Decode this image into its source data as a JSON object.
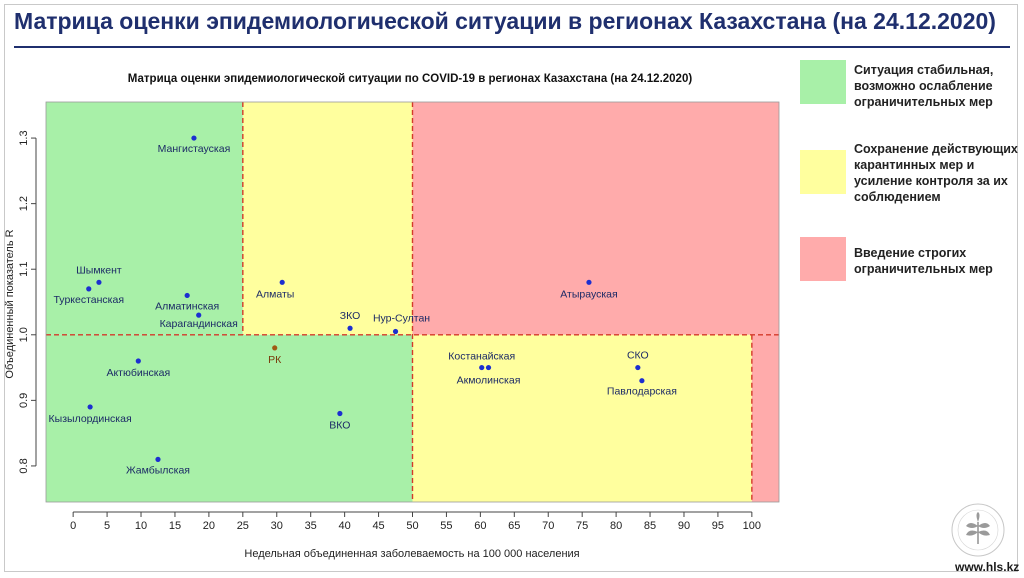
{
  "page": {
    "title": "Матрица оценки эпидемиологической ситуации в регионах Казахстана (на 24.12.2020)",
    "url": "www.hls.kz"
  },
  "colors": {
    "green": "#a8f0a8",
    "yellow": "#ffff9e",
    "red": "#ffabab",
    "threshold_line": "#d43a2a",
    "point": "#1c2fd0",
    "point_rk": "#a05a14",
    "title_color": "#1f2f6e"
  },
  "legend": [
    {
      "text": "Ситуация стабильная, возможно ослабление ограничительных мер",
      "color": "#a8f0a8"
    },
    {
      "text": "Сохранение действующих карантинных мер и усиление контроля за их соблюдением",
      "color": "#ffff9e"
    },
    {
      "text": "Введение строгих ограничительных мер",
      "color": "#ffabab"
    }
  ],
  "chart_data": {
    "type": "scatter",
    "title": "Матрица оценки эпидемиологической ситуации по COVID-19 в регионах Казахстана (на 24.12.2020)",
    "xlabel": "Недельная объединенная заболеваемость на 100 000 населения",
    "ylabel": "Объединенный показатель R",
    "xlim": [
      -4,
      104
    ],
    "ylim": [
      0.745,
      1.355
    ],
    "xticks": [
      0,
      5,
      10,
      15,
      20,
      25,
      30,
      35,
      40,
      45,
      50,
      55,
      60,
      65,
      70,
      75,
      80,
      85,
      90,
      95,
      100
    ],
    "yticks": [
      0.8,
      0.9,
      1.0,
      1.1,
      1.2,
      1.3
    ],
    "thresholds": {
      "x": [
        25,
        50,
        100
      ],
      "y": 1.0
    },
    "points": [
      {
        "label": "Мангистауская",
        "x": 17.8,
        "y": 1.3
      },
      {
        "label": "Шымкент",
        "x": 3.8,
        "y": 1.08
      },
      {
        "label": "Туркестанская",
        "x": 2.3,
        "y": 1.07
      },
      {
        "label": "Алматинская",
        "x": 16.8,
        "y": 1.06
      },
      {
        "label": "Карагандинская",
        "x": 18.5,
        "y": 1.03
      },
      {
        "label": "Алматы",
        "x": 30.8,
        "y": 1.08
      },
      {
        "label": "ЗКО",
        "x": 40.8,
        "y": 1.01
      },
      {
        "label": "Нур-Султан",
        "x": 47.5,
        "y": 1.005
      },
      {
        "label": "РК",
        "x": 29.7,
        "y": 0.98
      },
      {
        "label": "Атырауская",
        "x": 76.0,
        "y": 1.08
      },
      {
        "label": "Актюбинская",
        "x": 9.6,
        "y": 0.96
      },
      {
        "label": "Кызылординская",
        "x": 2.5,
        "y": 0.89
      },
      {
        "label": "ВКО",
        "x": 39.3,
        "y": 0.88
      },
      {
        "label": "Жамбылская",
        "x": 12.5,
        "y": 0.81
      },
      {
        "label": "Костанайская",
        "x": 60.2,
        "y": 0.95
      },
      {
        "label": "Акмолинская",
        "x": 61.2,
        "y": 0.95
      },
      {
        "label": "СКО",
        "x": 83.2,
        "y": 0.95
      },
      {
        "label": "Павлодарская",
        "x": 83.8,
        "y": 0.93
      }
    ]
  }
}
